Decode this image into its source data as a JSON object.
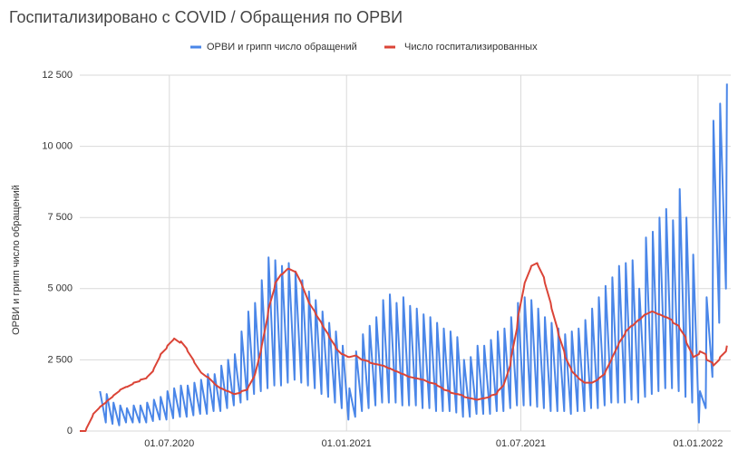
{
  "chart_data": {
    "type": "line",
    "title": "Госпитализировано с COVID / Обращения по ОРВИ",
    "y_axis_label": "ОРВИ и грипп число обращений",
    "legend": "top",
    "grid": true,
    "xlim": [
      "30.03.2020",
      "04.02.2022"
    ],
    "xticks": [
      "01.07.2020",
      "01.01.2021",
      "01.07.2021",
      "01.01.2022"
    ],
    "ylim": [
      0,
      12500
    ],
    "yticks": [
      0,
      {
        "value": 2500,
        "label": "2 500"
      },
      {
        "value": 5000,
        "label": "5 000"
      },
      {
        "value": 7500,
        "label": "7 500"
      },
      {
        "value": 10000,
        "label": "10 000"
      },
      {
        "value": 12500,
        "label": "12 500"
      }
    ],
    "x": [
      "30.03.2020",
      "05.04.2020",
      "06.04.2020",
      "12.04.2020",
      "13.04.2020",
      "19.04.2020",
      "20.04.2020",
      "26.04.2020",
      "27.04.2020",
      "03.05.2020",
      "04.05.2020",
      "10.05.2020",
      "11.05.2020",
      "17.05.2020",
      "18.05.2020",
      "24.05.2020",
      "25.05.2020",
      "31.05.2020",
      "01.06.2020",
      "07.06.2020",
      "08.06.2020",
      "14.06.2020",
      "15.06.2020",
      "21.06.2020",
      "22.06.2020",
      "28.06.2020",
      "29.06.2020",
      "05.07.2020",
      "06.07.2020",
      "12.07.2020",
      "13.07.2020",
      "19.07.2020",
      "20.07.2020",
      "26.07.2020",
      "27.07.2020",
      "02.08.2020",
      "03.08.2020",
      "09.08.2020",
      "10.08.2020",
      "16.08.2020",
      "17.08.2020",
      "23.08.2020",
      "24.08.2020",
      "30.08.2020",
      "31.08.2020",
      "06.09.2020",
      "07.09.2020",
      "13.09.2020",
      "14.09.2020",
      "20.09.2020",
      "21.09.2020",
      "27.09.2020",
      "28.09.2020",
      "04.10.2020",
      "05.10.2020",
      "11.10.2020",
      "12.10.2020",
      "18.10.2020",
      "19.10.2020",
      "25.10.2020",
      "26.10.2020",
      "01.11.2020",
      "02.11.2020",
      "08.11.2020",
      "09.11.2020",
      "15.11.2020",
      "16.11.2020",
      "22.11.2020",
      "23.11.2020",
      "29.11.2020",
      "30.11.2020",
      "06.12.2020",
      "07.12.2020",
      "13.12.2020",
      "14.12.2020",
      "20.12.2020",
      "21.12.2020",
      "27.12.2020",
      "28.12.2020",
      "03.01.2021",
      "04.01.2021",
      "10.01.2021",
      "11.01.2021",
      "17.01.2021",
      "18.01.2021",
      "24.01.2021",
      "25.01.2021",
      "31.01.2021",
      "01.02.2021",
      "07.02.2021",
      "08.02.2021",
      "14.02.2021",
      "15.02.2021",
      "21.02.2021",
      "22.02.2021",
      "28.02.2021",
      "01.03.2021",
      "07.03.2021",
      "08.03.2021",
      "14.03.2021",
      "15.03.2021",
      "21.03.2021",
      "22.03.2021",
      "28.03.2021",
      "29.03.2021",
      "04.04.2021",
      "05.04.2021",
      "11.04.2021",
      "12.04.2021",
      "18.04.2021",
      "19.04.2021",
      "25.04.2021",
      "26.04.2021",
      "02.05.2021",
      "03.05.2021",
      "09.05.2021",
      "10.05.2021",
      "16.05.2021",
      "17.05.2021",
      "23.05.2021",
      "24.05.2021",
      "30.05.2021",
      "31.05.2021",
      "06.06.2021",
      "07.06.2021",
      "13.06.2021",
      "14.06.2021",
      "20.06.2021",
      "21.06.2021",
      "27.06.2021",
      "28.06.2021",
      "04.07.2021",
      "05.07.2021",
      "11.07.2021",
      "12.07.2021",
      "18.07.2021",
      "19.07.2021",
      "25.07.2021",
      "26.07.2021",
      "01.08.2021",
      "02.08.2021",
      "08.08.2021",
      "09.08.2021",
      "15.08.2021",
      "16.08.2021",
      "22.08.2021",
      "23.08.2021",
      "29.08.2021",
      "30.08.2021",
      "05.09.2021",
      "06.09.2021",
      "12.09.2021",
      "13.09.2021",
      "19.09.2021",
      "20.09.2021",
      "26.09.2021",
      "27.09.2021",
      "03.10.2021",
      "04.10.2021",
      "10.10.2021",
      "11.10.2021",
      "17.10.2021",
      "18.10.2021",
      "24.10.2021",
      "25.10.2021",
      "31.10.2021",
      "01.11.2021",
      "07.11.2021",
      "08.11.2021",
      "14.11.2021",
      "15.11.2021",
      "21.11.2021",
      "22.11.2021",
      "28.11.2021",
      "29.11.2021",
      "05.12.2021",
      "06.12.2021",
      "12.12.2021",
      "13.12.2021",
      "19.12.2021",
      "20.12.2021",
      "26.12.2021",
      "27.12.2021",
      "02.01.2022",
      "03.01.2022",
      "09.01.2022",
      "10.01.2022",
      "16.01.2022",
      "17.01.2022",
      "23.01.2022",
      "24.01.2022",
      "30.01.2022",
      "31.01.2022"
    ],
    "series": [
      {
        "name": "ОРВИ и грипп число обращений",
        "color": "#4a86e8",
        "values": [
          null,
          null,
          null,
          null,
          null,
          null,
          1400,
          300,
          1300,
          250,
          1000,
          200,
          900,
          300,
          800,
          300,
          900,
          300,
          900,
          300,
          1000,
          350,
          1100,
          400,
          1200,
          400,
          1400,
          450,
          1500,
          500,
          1600,
          500,
          1600,
          550,
          1700,
          600,
          1800,
          600,
          2000,
          700,
          2000,
          700,
          2300,
          800,
          2500,
          900,
          2700,
          1000,
          3500,
          1100,
          4200,
          1300,
          4500,
          1400,
          5300,
          1500,
          6100,
          1600,
          6000,
          1600,
          5800,
          1700,
          5900,
          1800,
          5600,
          1700,
          5300,
          1600,
          4900,
          1500,
          4600,
          1300,
          4200,
          1200,
          3800,
          1000,
          3500,
          800,
          3000,
          400,
          1500,
          500,
          2800,
          700,
          3400,
          800,
          3700,
          900,
          4000,
          1000,
          4600,
          1000,
          4800,
          1000,
          4500,
          900,
          4700,
          900,
          4400,
          900,
          4300,
          800,
          4100,
          800,
          4000,
          700,
          3800,
          700,
          3600,
          700,
          3500,
          650,
          3300,
          500,
          2500,
          500,
          2600,
          600,
          3000,
          600,
          3000,
          600,
          3200,
          700,
          3500,
          700,
          3600,
          800,
          4000,
          900,
          4500,
          900,
          4700,
          900,
          4600,
          850,
          4300,
          800,
          4000,
          700,
          3800,
          700,
          3600,
          700,
          3400,
          600,
          3500,
          700,
          3600,
          700,
          3900,
          800,
          4300,
          800,
          4700,
          900,
          5100,
          1000,
          5400,
          1000,
          5800,
          1000,
          5900,
          1100,
          6000,
          1000,
          5000,
          1200,
          6800,
          1300,
          7000,
          1400,
          7500,
          1500,
          7800,
          1500,
          7400,
          1400,
          8500,
          1200,
          7500,
          1000,
          6200,
          300,
          1400,
          800,
          4700,
          1900,
          10900,
          3800,
          11500,
          5000,
          12200
        ]
      },
      {
        "name": "Число госпитализированных",
        "color": "#db4437",
        "values": [
          0,
          0,
          100,
          500,
          600,
          800,
          850,
          1000,
          1050,
          1200,
          1250,
          1400,
          1450,
          1550,
          1550,
          1650,
          1700,
          1750,
          1800,
          1850,
          1900,
          2100,
          2200,
          2600,
          2700,
          2900,
          3000,
          3200,
          3250,
          3100,
          3150,
          2900,
          2800,
          2500,
          2400,
          2100,
          2050,
          1900,
          1900,
          1700,
          1650,
          1500,
          1500,
          1400,
          1400,
          1300,
          1300,
          1350,
          1400,
          1450,
          1550,
          1900,
          2000,
          2800,
          3000,
          4000,
          4300,
          5000,
          5200,
          5500,
          5500,
          5700,
          5700,
          5600,
          5600,
          5200,
          5100,
          4600,
          4500,
          4200,
          4100,
          3800,
          3700,
          3400,
          3300,
          3000,
          2900,
          2700,
          2700,
          2600,
          2600,
          2650,
          2650,
          2500,
          2500,
          2450,
          2400,
          2350,
          2350,
          2300,
          2300,
          2200,
          2200,
          2100,
          2100,
          2000,
          2000,
          1900,
          1900,
          1850,
          1850,
          1800,
          1800,
          1700,
          1700,
          1650,
          1600,
          1500,
          1450,
          1400,
          1350,
          1300,
          1300,
          1250,
          1200,
          1150,
          1150,
          1100,
          1100,
          1150,
          1150,
          1200,
          1250,
          1300,
          1400,
          1600,
          1700,
          2300,
          2600,
          3600,
          4000,
          5000,
          5200,
          5700,
          5800,
          5900,
          5800,
          5400,
          5200,
          4500,
          4300,
          3600,
          3400,
          2800,
          2600,
          2200,
          2100,
          1900,
          1850,
          1700,
          1700,
          1700,
          1700,
          1800,
          1850,
          2000,
          2100,
          2500,
          2600,
          3000,
          3100,
          3400,
          3500,
          3700,
          3700,
          3900,
          3900,
          4100,
          4100,
          4200,
          4200,
          4100,
          4100,
          4000,
          4000,
          3900,
          3800,
          3700,
          3600,
          3300,
          3100,
          2700,
          2600,
          2700,
          2800,
          2700,
          2500,
          2400,
          2300,
          2500,
          2600,
          2800,
          3000
        ]
      }
    ]
  }
}
